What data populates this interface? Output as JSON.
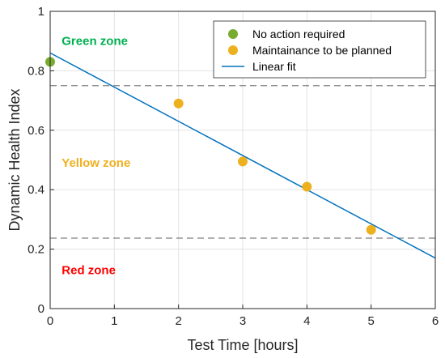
{
  "chart_data": {
    "type": "scatter",
    "xlabel": "Test Time [hours]",
    "ylabel": "Dynamic Health Index",
    "xlim": [
      0,
      6
    ],
    "ylim": [
      0,
      1
    ],
    "xticks": [
      "0",
      "1",
      "2",
      "3",
      "4",
      "5",
      "6"
    ],
    "yticks": [
      "0",
      "0.2",
      "0.4",
      "0.6",
      "0.8",
      "1"
    ],
    "grid": true,
    "legend_position": "top-right",
    "series": [
      {
        "name": "No action required",
        "kind": "scatter",
        "color": "#77ac30",
        "points": [
          {
            "x": 0,
            "y": 0.83
          }
        ]
      },
      {
        "name": "Maintainance to be planned",
        "kind": "scatter",
        "color": "#edb120",
        "points": [
          {
            "x": 2,
            "y": 0.69
          },
          {
            "x": 3,
            "y": 0.495
          },
          {
            "x": 4,
            "y": 0.41
          },
          {
            "x": 5,
            "y": 0.265
          }
        ]
      },
      {
        "name": "Linear fit",
        "kind": "line",
        "color": "#0072bd",
        "points": [
          {
            "x": 0,
            "y": 0.86
          },
          {
            "x": 6,
            "y": 0.17
          }
        ]
      }
    ],
    "thresholds": [
      {
        "y": 0.75,
        "color": "#808080",
        "style": "dashed"
      },
      {
        "y": 0.237,
        "color": "#808080",
        "style": "dashed"
      }
    ],
    "annotations": [
      {
        "text": "Green zone",
        "x": 0.18,
        "y": 0.9,
        "color": "#00b050"
      },
      {
        "text": "Yellow zone",
        "x": 0.18,
        "y": 0.49,
        "color": "#f0b020"
      },
      {
        "text": "Red zone",
        "x": 0.18,
        "y": 0.13,
        "color": "#ff0000"
      }
    ]
  }
}
